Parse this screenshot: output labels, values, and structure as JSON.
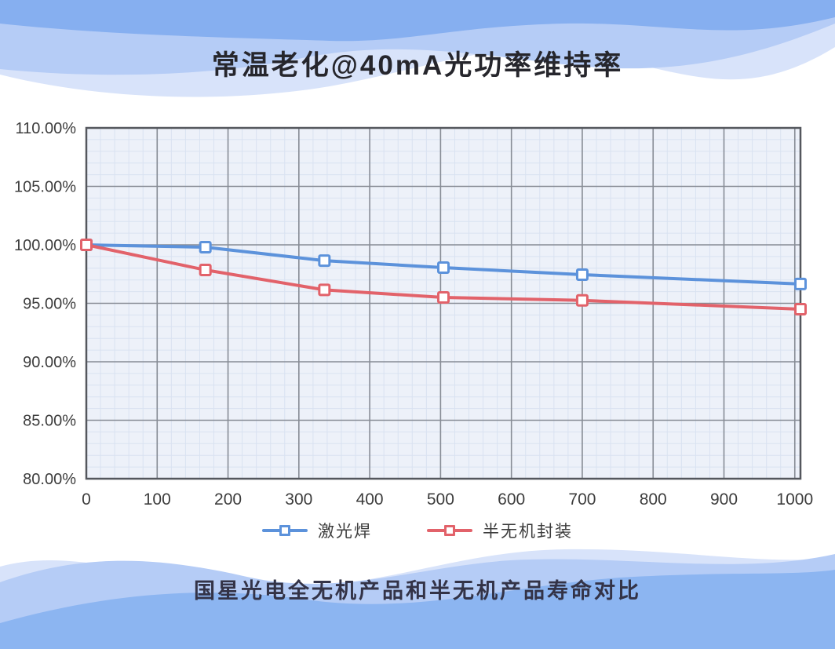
{
  "page": {
    "title": "常温老化@40mA光功率维持率",
    "caption": "国星光电全无机产品和半无机产品寿命对比"
  },
  "colors": {
    "title_text": "#26262C",
    "caption_text": "#333347",
    "tick_text": "#3C3C3C",
    "plot_bg": "#EDF1F9",
    "minor_grid": "#D9E2F1",
    "major_grid": "#878C95",
    "axis_border": "#54575D",
    "wave_deep": "#86AFF0",
    "wave_mid": "#B5CCF6",
    "wave_pale": "#D8E3FA",
    "wave_bottom_deep": "#8CB5F1"
  },
  "chart_data": {
    "type": "line",
    "title": "常温老化@40mA光功率维持率",
    "xlabel": "",
    "ylabel": "",
    "xlim": [
      0,
      1008
    ],
    "ylim": [
      80,
      110
    ],
    "x_ticks": [
      0,
      100,
      200,
      300,
      400,
      500,
      600,
      700,
      800,
      900,
      1000
    ],
    "x_tick_labels": [
      "0",
      "100",
      "200",
      "300",
      "400",
      "500",
      "600",
      "700",
      "800",
      "900",
      "1000"
    ],
    "y_ticks": [
      110,
      105,
      100,
      95,
      90,
      85,
      80
    ],
    "y_tick_labels": [
      "110.00%",
      "105.00%",
      "100.00%",
      "95.00%",
      "90.00%",
      "85.00%",
      "80.00%"
    ],
    "minor_x_step": 20,
    "minor_y_step": 1,
    "grid": "major dark gray with fine light-blue minor grid",
    "legend_position": "bottom",
    "series": [
      {
        "name": "激光焊",
        "color": "#5C92DB",
        "marker": "square",
        "x": [
          0,
          168,
          336,
          504,
          700,
          1008
        ],
        "y": [
          100.0,
          99.8,
          98.65,
          98.05,
          97.45,
          96.65
        ]
      },
      {
        "name": "半无机封装",
        "color": "#E2626A",
        "marker": "square",
        "x": [
          0,
          168,
          336,
          504,
          700,
          1008
        ],
        "y": [
          100.0,
          97.85,
          96.15,
          95.5,
          95.25,
          94.5
        ]
      }
    ]
  }
}
